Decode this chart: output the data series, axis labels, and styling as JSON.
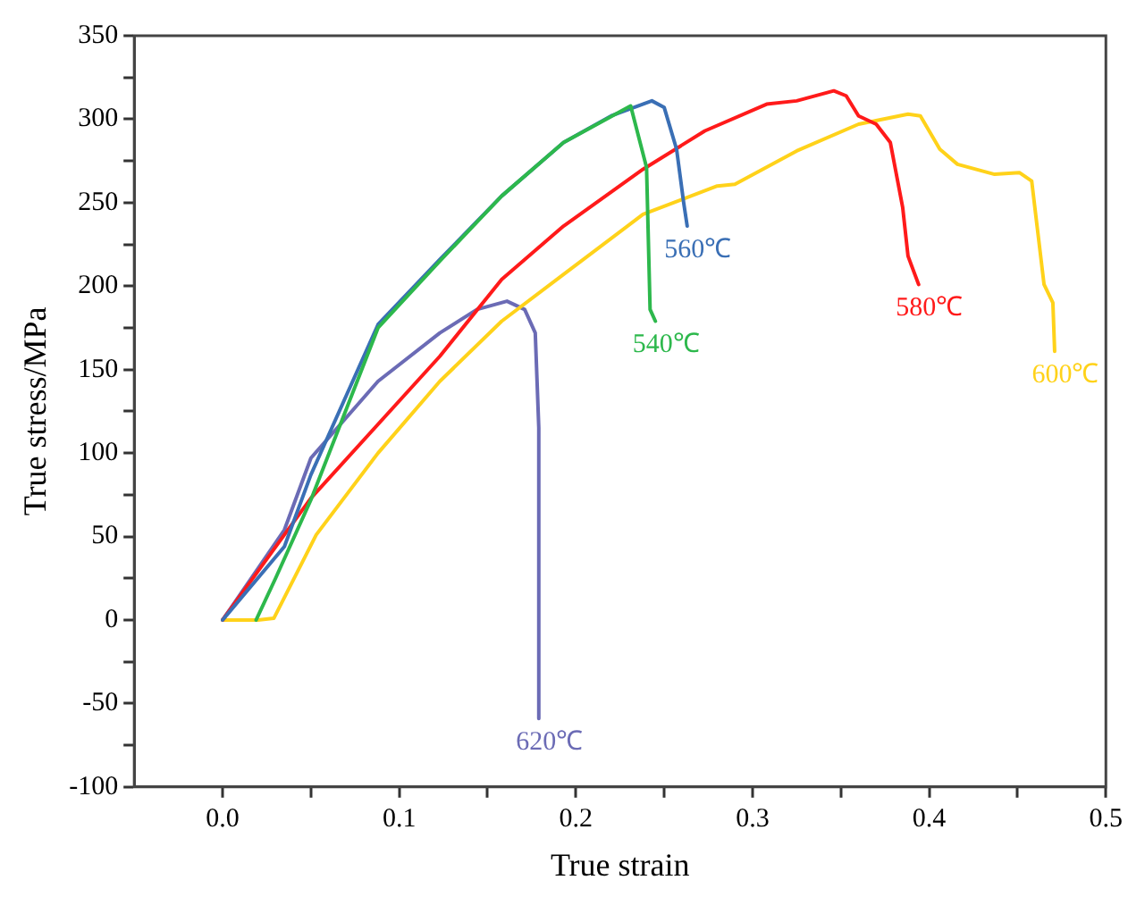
{
  "chart_data": {
    "type": "line",
    "xlabel": "True strain",
    "ylabel": "True stress/MPa",
    "xlim": [
      -0.05,
      0.5
    ],
    "ylim": [
      -100,
      350
    ],
    "xticks": [
      {
        "value": 0,
        "label": "0.0"
      },
      {
        "value": 0.05,
        "label": null
      },
      0.1,
      {
        "value": 0.15,
        "label": null
      },
      0.2,
      {
        "value": 0.25,
        "label": null
      },
      0.3,
      {
        "value": 0.35,
        "label": null
      },
      0.4,
      {
        "value": 0.45,
        "label": null
      },
      0.5
    ],
    "yticks": [
      -100,
      {
        "value": -75,
        "label": null
      },
      -50,
      {
        "value": -25,
        "label": null
      },
      0,
      {
        "value": 25,
        "label": null
      },
      50,
      {
        "value": 75,
        "label": null
      },
      100,
      {
        "value": 125,
        "label": null
      },
      150,
      {
        "value": 175,
        "label": null
      },
      200,
      {
        "value": 225,
        "label": null
      },
      250,
      {
        "value": 275,
        "label": null
      },
      300,
      {
        "value": 325,
        "label": null
      },
      350
    ],
    "grid": false,
    "legend": false,
    "marker": "none",
    "line_style": "solid",
    "series": [
      {
        "name": "540℃",
        "color": "#2db84c",
        "x": [
          0.019,
          0.03,
          0.05,
          0.088,
          0.123,
          0.158,
          0.193,
          0.231,
          0.24,
          0.242,
          0.245
        ],
        "values": [
          0,
          25,
          72,
          175,
          215,
          254,
          286,
          308,
          271,
          186,
          179
        ]
      },
      {
        "name": "560℃",
        "color": "#3a6fb5",
        "x": [
          0,
          0.035,
          0.05,
          0.088,
          0.123,
          0.158,
          0.193,
          0.22,
          0.243,
          0.25,
          0.257,
          0.261,
          0.263
        ],
        "values": [
          0,
          44,
          87,
          177,
          216,
          254,
          286,
          302,
          311,
          307,
          282,
          250,
          236
        ]
      },
      {
        "name": "580℃",
        "color": "#ff1a1a",
        "x": [
          0,
          0.05,
          0.123,
          0.158,
          0.193,
          0.238,
          0.273,
          0.308,
          0.325,
          0.346,
          0.353,
          0.36,
          0.37,
          0.378,
          0.385,
          0.388,
          0.394
        ],
        "values": [
          0,
          73,
          158,
          204,
          236,
          270,
          293,
          309,
          311,
          317,
          314,
          302,
          297,
          286,
          247,
          218,
          201
        ]
      },
      {
        "name": "600℃",
        "color": "#ffd21a",
        "x": [
          0,
          0.02,
          0.029,
          0.053,
          0.088,
          0.123,
          0.158,
          0.193,
          0.238,
          0.28,
          0.29,
          0.325,
          0.36,
          0.388,
          0.395,
          0.406,
          0.416,
          0.437,
          0.451,
          0.458,
          0.465,
          0.47,
          0.471
        ],
        "values": [
          0,
          0,
          1,
          51,
          100,
          143,
          179,
          207,
          243,
          260,
          261,
          281,
          297,
          303,
          302,
          282,
          273,
          267,
          268,
          263,
          201,
          190,
          161
        ]
      },
      {
        "name": "620℃",
        "color": "#6b6bb5",
        "x": [
          0,
          0.035,
          0.05,
          0.088,
          0.123,
          0.144,
          0.161,
          0.171,
          0.177,
          0.179,
          0.179
        ],
        "values": [
          0,
          54,
          97,
          143,
          172,
          186,
          191,
          186,
          172,
          115,
          -59
        ]
      }
    ]
  }
}
